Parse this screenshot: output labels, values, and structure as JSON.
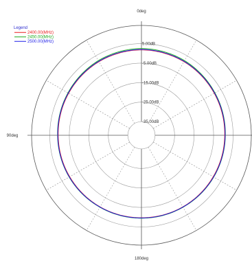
{
  "chart_data": {
    "type": "line",
    "title": "",
    "angular_axis": {
      "labels": [
        "0deg",
        "90deg",
        "180deg"
      ],
      "spoke_step_deg": 30
    },
    "radial_axis": {
      "unit": "dB",
      "range_db": [
        -42,
        8
      ],
      "tick_labels": [
        "5.00dB",
        "-5.00dB",
        "-15.00dB",
        "-25.00dB",
        "-35.00dB"
      ],
      "tick_values": [
        5,
        -5,
        -15,
        -25,
        -35
      ],
      "grid_circles_db": [
        -35,
        -25,
        -15,
        -5,
        5
      ]
    },
    "grid": true,
    "legend": {
      "title": "Legend",
      "title_color": "#2f2fcf",
      "placement": "top-left"
    },
    "series": [
      {
        "name": "2400.00(MHz)",
        "color": "#e81c1c",
        "angles_deg": [
          0,
          30,
          60,
          90,
          120,
          150,
          180,
          210,
          240,
          270,
          300,
          330
        ],
        "values_db": [
          1.8,
          1.6,
          1.1,
          0.7,
          0.5,
          0.4,
          0.3,
          0.4,
          0.5,
          0.7,
          1.1,
          1.6
        ]
      },
      {
        "name": "2450.00(MHz)",
        "color": "#1faa1f",
        "angles_deg": [
          0,
          30,
          60,
          90,
          120,
          150,
          180,
          210,
          240,
          270,
          300,
          330
        ],
        "values_db": [
          2.5,
          2.2,
          1.5,
          1.0,
          0.8,
          0.6,
          0.5,
          0.6,
          0.8,
          1.0,
          1.5,
          2.2
        ]
      },
      {
        "name": "2500.00(MHz)",
        "color": "#1c1ce8",
        "angles_deg": [
          0,
          30,
          60,
          90,
          120,
          150,
          180,
          210,
          240,
          270,
          300,
          330
        ],
        "values_db": [
          2.0,
          1.8,
          1.3,
          0.9,
          0.7,
          0.5,
          0.4,
          0.5,
          0.7,
          0.9,
          1.3,
          1.8
        ]
      }
    ]
  }
}
